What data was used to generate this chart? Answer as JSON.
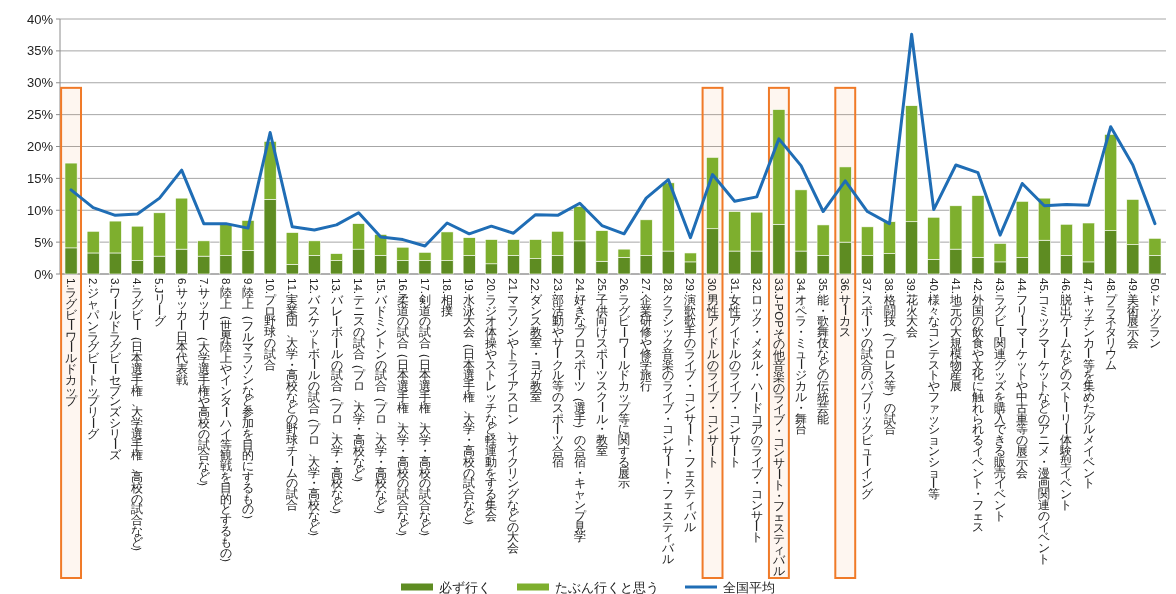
{
  "chart_data": {
    "type": "bar",
    "stacked": true,
    "categories": [
      "1.ラグビーワールドカップ",
      "2.ジャパンラグビートップリーグ",
      "3.ワールドラグビーセブンズシリーズ",
      "4.ラグビー（日本選手権、大学選手権、高校の試合など）",
      "5.Jリーグ",
      "6.サッカー日本代表戦",
      "7.サッカー（大学選手権や高校の試合など）",
      "8.陸上（世界陸上やインターハイ等観戦を目的とするもの）",
      "9.陸上（フルマラソンなど参加を目的にするもの）",
      "10.プロ野球の試合",
      "11.実業団、大学・高校などの野球チームの試合",
      "12.バスケットボールの試合（プロ、大学・高校など）",
      "13.バレーボールの試合（プロ、大学・高校など）",
      "14.テニスの試合（プロ、大学・高校など）",
      "15.バドミントンの試合（プロ、大学・高校など）",
      "16.柔道の試合（日本選手権、大学・高校の試合など）",
      "17.剣道の試合（日本選手権、大学・高校の試合など）",
      "18.相撲",
      "19.水泳大会（日本選手権、大学・高校の試合など）",
      "20.ラジオ体操やストレッチなど軽運動をする集会",
      "21.マラソンやトライアスロン、サイクリングなどの大会",
      "22.ダンス教室・ヨガ教室",
      "23.部活動やサークル等のスポーツ合宿",
      "24.好きなプロスポーツ（選手）の合宿・キャンプ見学",
      "25.子供向けスポーツスクール・教室",
      "26.ラグビーワールドカップ等に関する展示",
      "27.企業研修や修学旅行",
      "28.クラシック音楽のライブ・コンサート・フェスティバル",
      "29.演歌歌手のライブ・コンサート・フェスティバル",
      "30.男性アイドルのライブ・コンサート",
      "31.女性アイドルのライブ・コンサート",
      "32.ロック・メタル・ハードコアのライブ・コンサート",
      "33.J-POPその他音楽のライブ・コンサート・フェスティバル",
      "34.オペラ・ミュージカル・舞台",
      "35.能・歌舞伎などの伝統芸能",
      "36.サーカス",
      "37.スポーツの試合のパブリックビューイング",
      "38.格闘技（プロレス等）の試合",
      "39.花火大会",
      "40.様々なコンテストやファッションショー等",
      "41.地元の大規模物産展",
      "42.外国の飲食や文化に触れられるイベント・フェス",
      "43.ラグビー関連グッズを購入できる販売イベント",
      "44.フリーマーケットや中古車等の展示会",
      "45.コミックマーケットなどのアニメ・漫画関連のイベント",
      "46.脱出ゲームなどのストーリー体験型イベント",
      "47.キッチンカー等を集めたグルメイベント",
      "48.プラネタリウム",
      "49.美術展示会",
      "50.ドッグラン"
    ],
    "series": [
      {
        "name": "必ず行く",
        "color": "#5e8c22",
        "values": [
          4.1,
          3.3,
          3.3,
          2.1,
          2.8,
          3.9,
          2.8,
          2.9,
          3.7,
          11.7,
          1.5,
          2.9,
          2.1,
          3.9,
          2.9,
          2.1,
          2.1,
          2.1,
          2.9,
          1.6,
          2.9,
          2.4,
          2.9,
          5.2,
          2.0,
          2.6,
          2.9,
          3.6,
          1.9,
          7.1,
          3.6,
          3.6,
          7.8,
          3.6,
          2.9,
          5.0,
          2.9,
          3.2,
          8.2,
          2.3,
          3.9,
          2.6,
          1.9,
          2.6,
          5.3,
          2.9,
          1.9,
          6.8,
          4.6,
          2.9
        ]
      },
      {
        "name": "たぶん行くと思う",
        "color": "#7eaf2e",
        "values": [
          13.3,
          3.4,
          5.0,
          5.4,
          6.8,
          8.0,
          2.4,
          4.9,
          4.7,
          9.1,
          5.0,
          2.3,
          1.1,
          4.0,
          3.3,
          2.1,
          1.3,
          4.5,
          2.8,
          3.8,
          2.5,
          3.0,
          3.8,
          5.4,
          4.8,
          1.3,
          5.6,
          10.7,
          1.4,
          11.2,
          6.2,
          6.1,
          18.0,
          9.6,
          4.8,
          11.8,
          4.5,
          5.0,
          18.2,
          6.6,
          6.8,
          9.7,
          2.9,
          8.8,
          6.6,
          4.9,
          6.1,
          15.1,
          7.1,
          2.7
        ]
      },
      {
        "name": "全国平均",
        "type": "line",
        "color": "#1f6db5",
        "values": [
          13.2,
          10.4,
          9.2,
          9.4,
          11.9,
          16.3,
          7.9,
          7.9,
          7.2,
          22.2,
          7.4,
          6.9,
          7.7,
          9.6,
          5.8,
          5.4,
          4.4,
          8.0,
          6.3,
          7.5,
          6.4,
          9.3,
          9.2,
          11.1,
          7.6,
          6.3,
          11.9,
          14.8,
          5.7,
          15.6,
          11.4,
          12.1,
          21.2,
          17.0,
          9.8,
          14.6,
          9.8,
          7.9,
          37.6,
          10.1,
          17.1,
          15.9,
          6.1,
          14.2,
          10.7,
          10.9,
          10.8,
          23.1,
          17.1,
          7.9
        ]
      }
    ],
    "ylim": [
      0,
      40
    ],
    "yticks": [
      {
        "value": 0,
        "label": "0%"
      },
      {
        "value": 5,
        "label": "5%"
      },
      {
        "value": 10,
        "label": "10%"
      },
      {
        "value": 15,
        "label": "15%"
      },
      {
        "value": 20,
        "label": "20%"
      },
      {
        "value": 25,
        "label": "25%"
      },
      {
        "value": 30,
        "label": "30%"
      },
      {
        "value": 35,
        "label": "35%"
      },
      {
        "value": 40,
        "label": "40%"
      }
    ],
    "grid": "y",
    "legend": "bottom",
    "bands": [
      {
        "axis": "x",
        "from": "1.ラグビーワールドカップ",
        "to": "1.ラグビーワールドカップ",
        "color": "#f07a28"
      },
      {
        "axis": "x",
        "from": "30.男性アイドルのライブ・コンサート",
        "to": "30.男性アイドルのライブ・コンサート",
        "color": "#f07a28"
      },
      {
        "axis": "x",
        "from": "33.J-POPその他音楽のライブ・コンサート・フェスティバル",
        "to": "33.J-POPその他音楽のライブ・コンサート・フェスティバル",
        "color": "#f07a28"
      },
      {
        "axis": "x",
        "from": "36.サーカス",
        "to": "36.サーカス",
        "color": "#f07a28"
      }
    ]
  }
}
